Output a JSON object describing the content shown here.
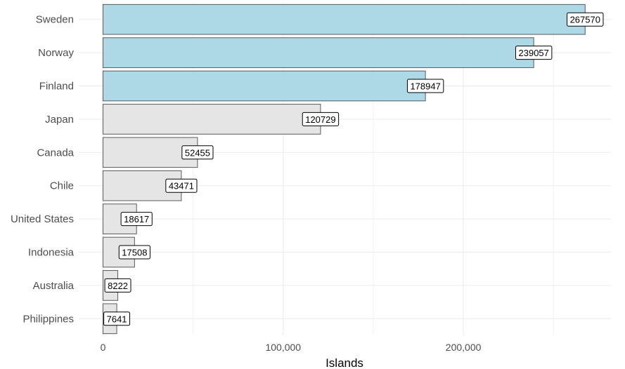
{
  "chart_data": {
    "type": "bar",
    "orientation": "horizontal",
    "categories": [
      "Sweden",
      "Norway",
      "Finland",
      "Japan",
      "Canada",
      "Chile",
      "United States",
      "Indonesia",
      "Australia",
      "Philippines"
    ],
    "values": [
      267570,
      239057,
      178947,
      120729,
      52455,
      43471,
      18617,
      17508,
      8222,
      7641
    ],
    "data_labels": [
      "267570",
      "239057",
      "178947",
      "120729",
      "52455",
      "43471",
      "18617",
      "17508",
      "8222",
      "7641"
    ],
    "highlight": [
      true,
      true,
      true,
      false,
      false,
      false,
      false,
      false,
      false,
      false
    ],
    "colors": {
      "highlight": "#add8e6",
      "default": "#e5e5e5",
      "bar_border": "#5a5a5a"
    },
    "xlabel": "Islands",
    "ylabel": "",
    "xlim": [
      0,
      280000
    ],
    "x_ticks": [
      0,
      100000,
      200000
    ],
    "x_tick_labels": [
      "0",
      "100,000",
      "200,000"
    ],
    "grid": true,
    "legend": false
  }
}
